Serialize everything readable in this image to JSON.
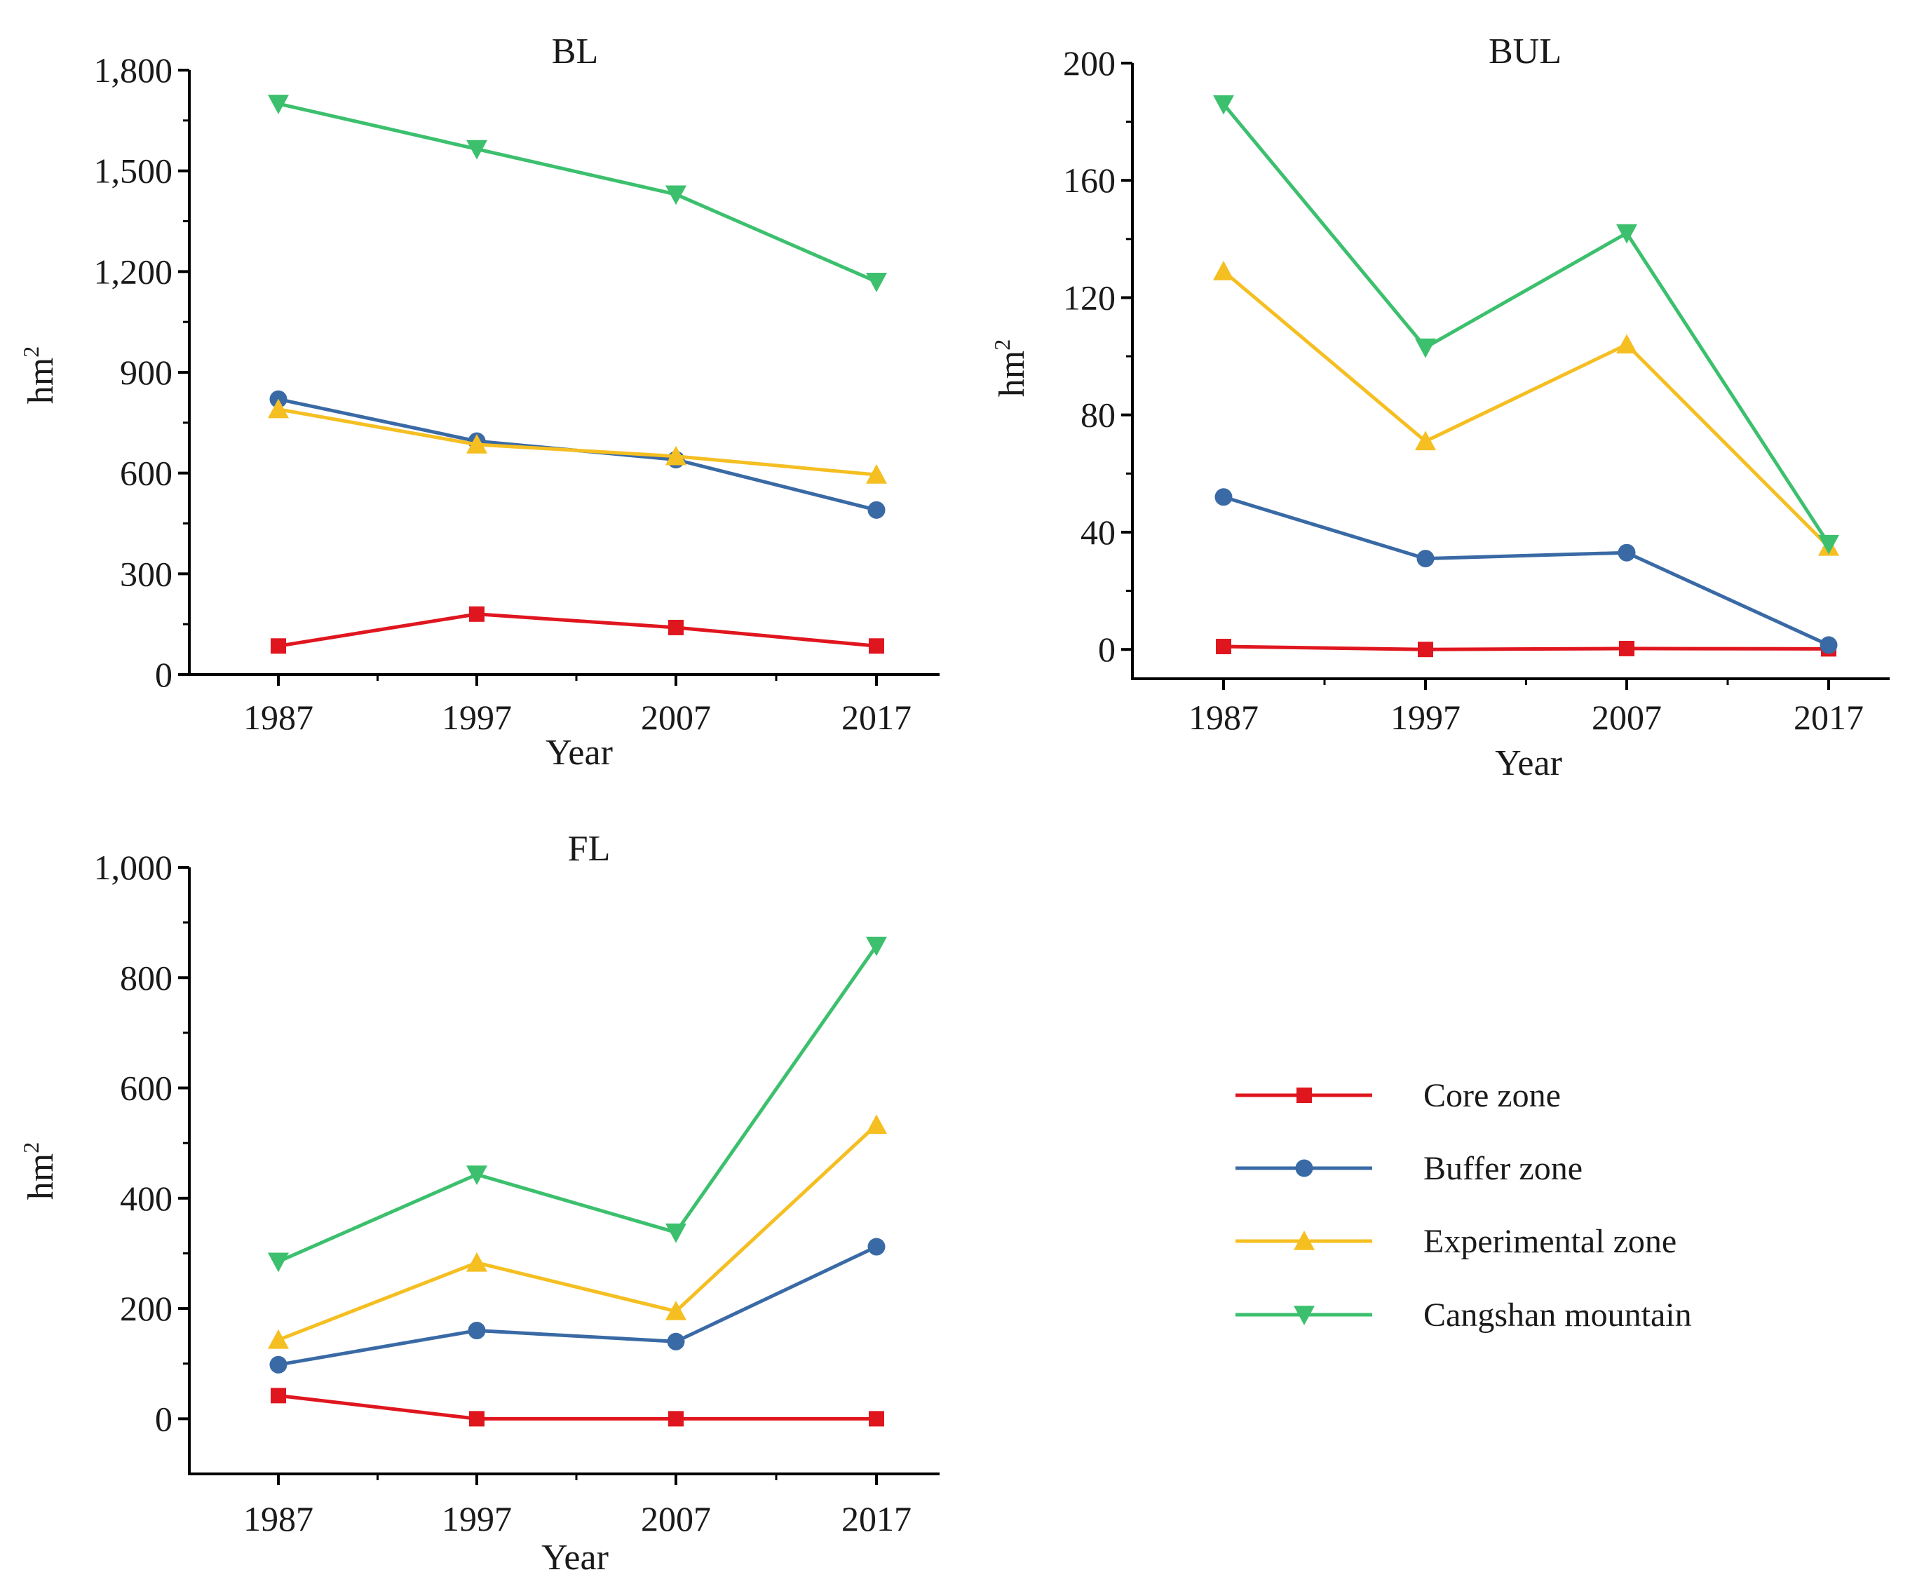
{
  "series_styles": [
    {
      "name": "Core zone",
      "color": "#e0161f",
      "marker": "square"
    },
    {
      "name": "Buffer zone",
      "color": "#3a6aa5",
      "marker": "circle"
    },
    {
      "name": "Experimental zone",
      "color": "#f5bf22",
      "marker": "triangle-up"
    },
    {
      "name": "Cangshan mountain",
      "color": "#3cc06e",
      "marker": "triangle-down"
    }
  ],
  "legend": {
    "items": [
      "Core zone",
      "Buffer zone",
      "Experimental zone",
      "Cangshan mountain"
    ]
  },
  "chart_data": [
    {
      "id": "BL",
      "type": "line",
      "title": "BL",
      "xlabel": "Year",
      "ylabel": "hm",
      "ylabel_superscript": "2",
      "categories": [
        "1987",
        "1997",
        "2007",
        "2017"
      ],
      "ylim": [
        0,
        1800
      ],
      "yticks": [
        0,
        300,
        600,
        900,
        1200,
        1500,
        1800
      ],
      "ytick_labels": [
        "0",
        "300",
        "600",
        "900",
        "1,200",
        "1,500",
        "1,800"
      ],
      "series": [
        {
          "name": "Core zone",
          "values": [
            85,
            180,
            140,
            85
          ]
        },
        {
          "name": "Buffer zone",
          "values": [
            820,
            695,
            640,
            490
          ]
        },
        {
          "name": "Experimental zone",
          "values": [
            790,
            685,
            650,
            595
          ]
        },
        {
          "name": "Cangshan mountain",
          "values": [
            1700,
            1565,
            1430,
            1170
          ]
        }
      ]
    },
    {
      "id": "BUL",
      "type": "line",
      "title": "BUL",
      "xlabel": "Year",
      "ylabel": "hm",
      "ylabel_superscript": "2",
      "categories": [
        "1987",
        "1997",
        "2007",
        "2017"
      ],
      "ylim": [
        -10,
        200
      ],
      "yticks": [
        0,
        40,
        80,
        120,
        160,
        200
      ],
      "ytick_labels": [
        "0",
        "40",
        "80",
        "120",
        "160",
        "200"
      ],
      "series": [
        {
          "name": "Core zone",
          "values": [
            1,
            0,
            0.3,
            0.2
          ]
        },
        {
          "name": "Buffer zone",
          "values": [
            52,
            31,
            33,
            1.5
          ]
        },
        {
          "name": "Experimental zone",
          "values": [
            129,
            71,
            104,
            35
          ]
        },
        {
          "name": "Cangshan mountain",
          "values": [
            186,
            103,
            142,
            36
          ]
        }
      ]
    },
    {
      "id": "FL",
      "type": "line",
      "title": "FL",
      "xlabel": "Year",
      "ylabel": "hm",
      "ylabel_superscript": "2",
      "categories": [
        "1987",
        "1997",
        "2007",
        "2017"
      ],
      "ylim": [
        -100,
        1000
      ],
      "yticks": [
        0,
        200,
        400,
        600,
        800,
        1000
      ],
      "ytick_labels": [
        "0",
        "200",
        "400",
        "600",
        "800",
        "1,000"
      ],
      "series": [
        {
          "name": "Core zone",
          "values": [
            42,
            0,
            0,
            0
          ]
        },
        {
          "name": "Buffer zone",
          "values": [
            98,
            160,
            140,
            312
          ]
        },
        {
          "name": "Experimental zone",
          "values": [
            143,
            283,
            195,
            533
          ]
        },
        {
          "name": "Cangshan mountain",
          "values": [
            285,
            443,
            338,
            858
          ]
        }
      ]
    }
  ]
}
